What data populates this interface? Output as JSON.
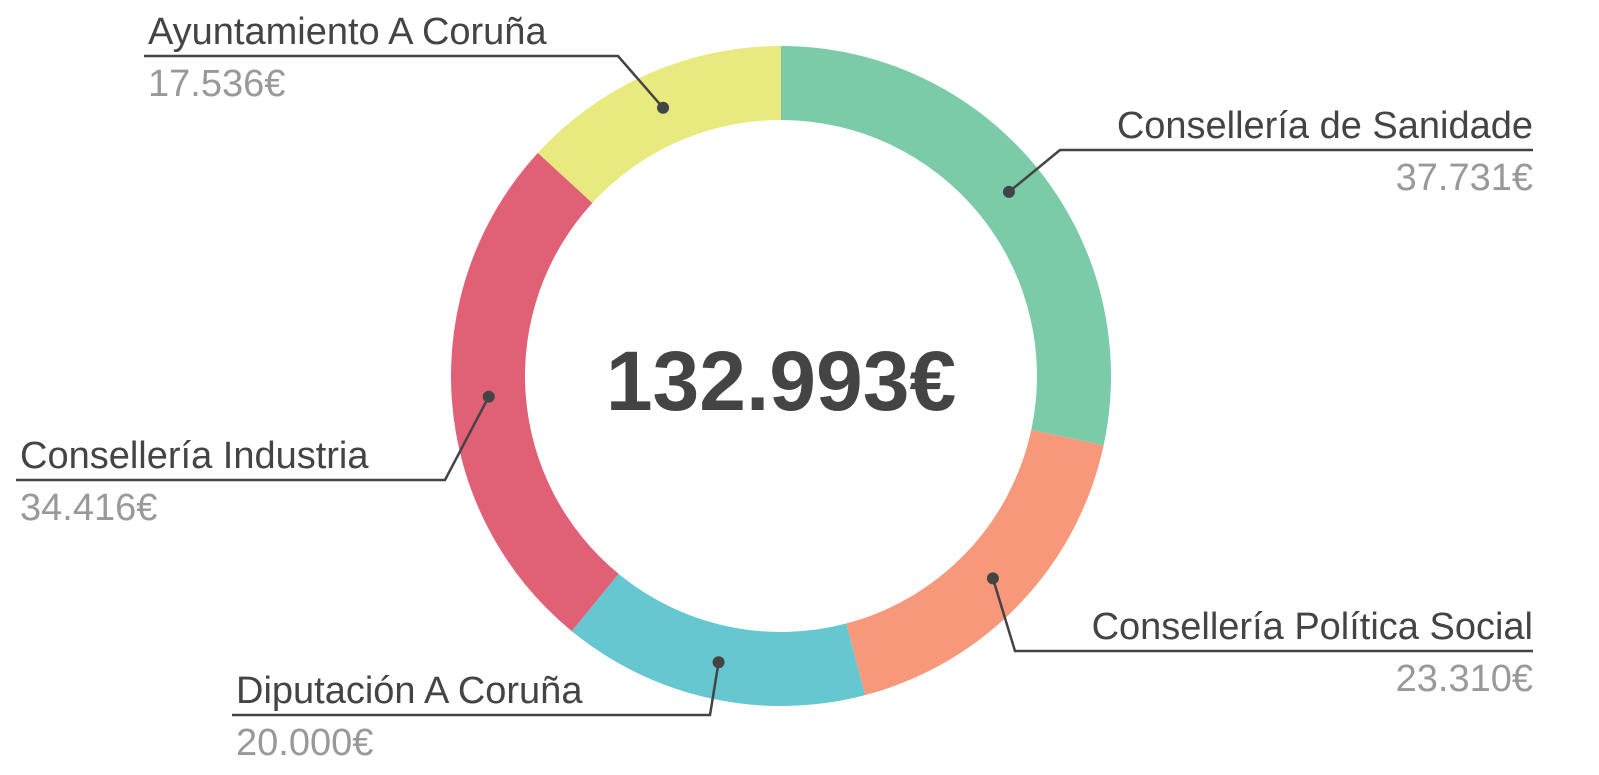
{
  "chart_data": {
    "type": "donut",
    "categories": [
      "Consellería de Sanidade",
      "Consellería Política Social",
      "Diputación A Coruña",
      "Consellería Industria",
      "Ayuntamiento A Coruña"
    ],
    "values": [
      37731,
      23310,
      20000,
      34416,
      17536
    ],
    "value_labels": [
      "37.731€",
      "23.310€",
      "20.000€",
      "34.416€",
      "17.536€"
    ],
    "colors": [
      "#7bcba8",
      "#f7987a",
      "#65c8d0",
      "#e06075",
      "#e8ea80"
    ],
    "center_text": "132.993€"
  }
}
